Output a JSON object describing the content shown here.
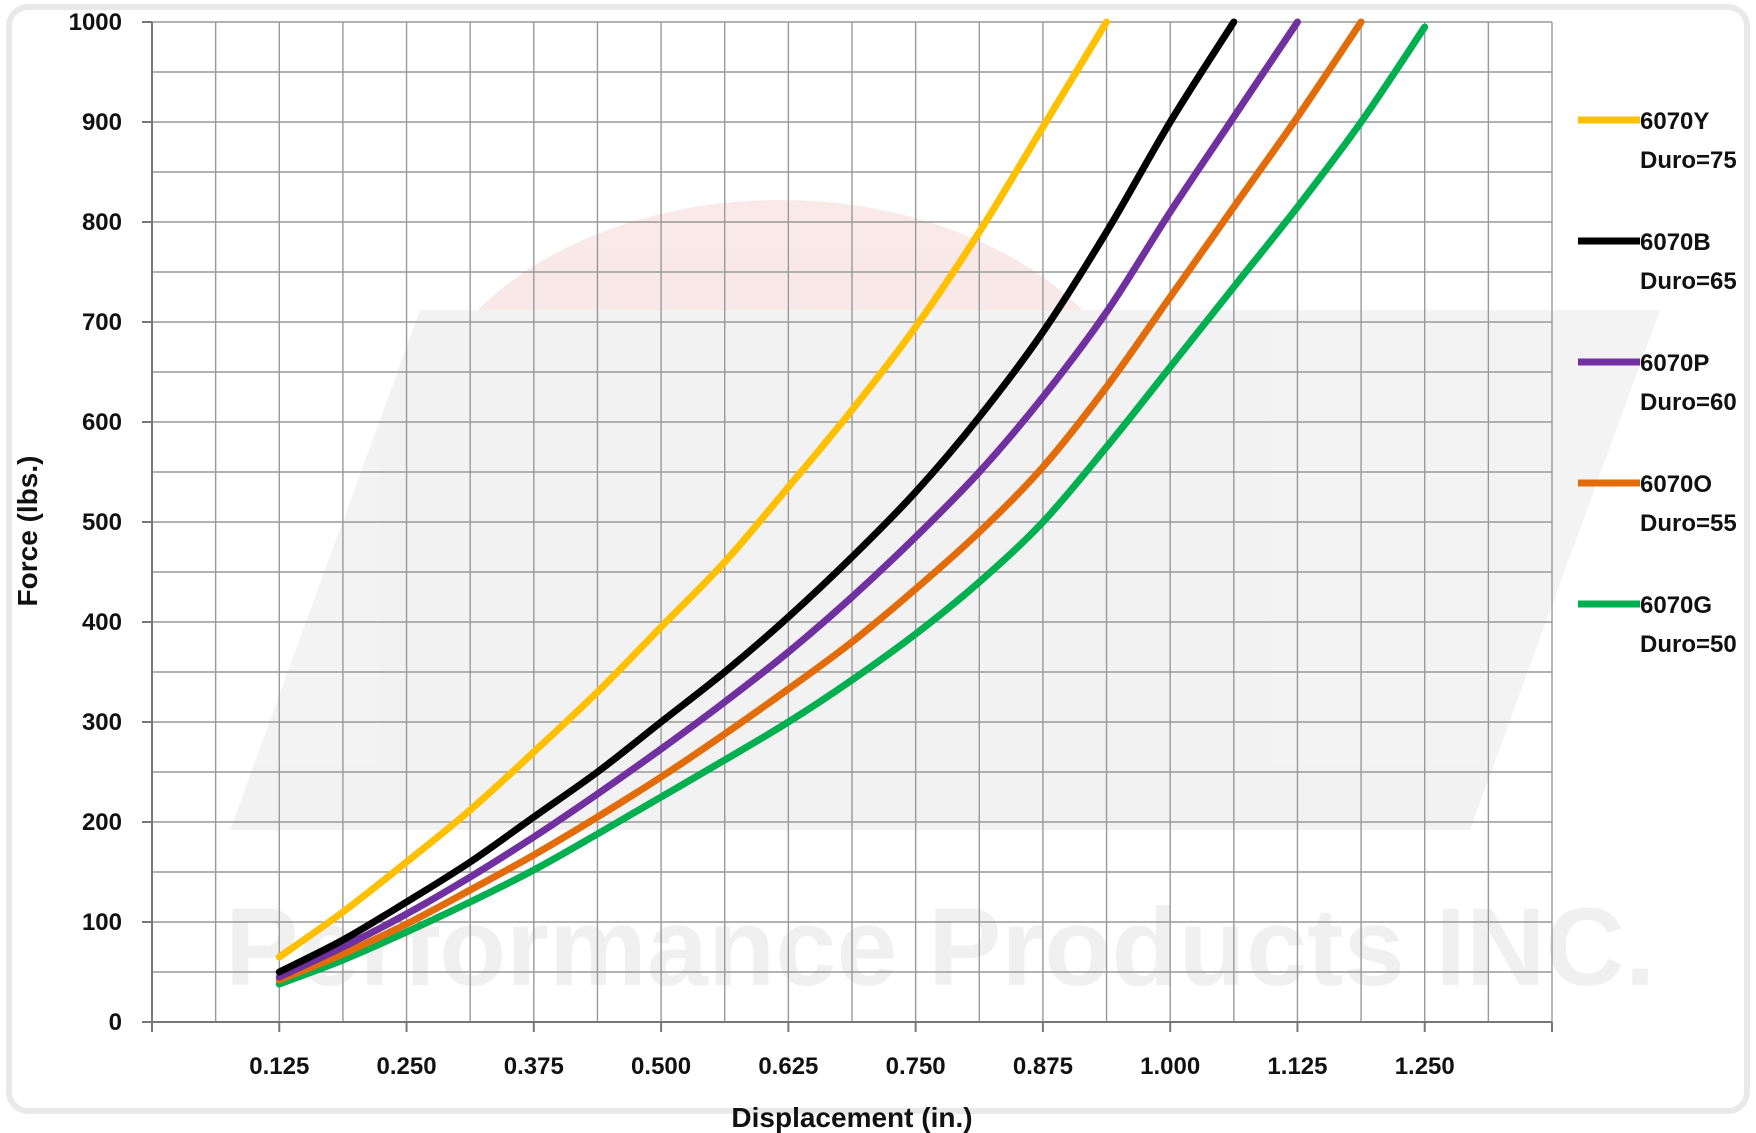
{
  "chart_data": {
    "type": "line",
    "title": "",
    "xlabel": "Displacement (in.)",
    "ylabel": "Force (lbs.)",
    "xlim": [
      0,
      1.375
    ],
    "ylim": [
      0,
      1000
    ],
    "x_ticks": [
      "0.125",
      "0.250",
      "0.375",
      "0.500",
      "0.625",
      "0.750",
      "0.875",
      "1.000",
      "1.125",
      "1.250"
    ],
    "y_ticks": [
      "0",
      "100",
      "200",
      "300",
      "400",
      "500",
      "600",
      "700",
      "800",
      "900",
      "1000"
    ],
    "grid": true,
    "legend_position": "right",
    "watermark": "Performance Products INC.",
    "series": [
      {
        "name": "6070Y",
        "legend_lines": [
          "6070Y",
          "Duro=75"
        ],
        "color": "#ffc000",
        "x": [
          0.125,
          0.1875,
          0.25,
          0.3125,
          0.375,
          0.4375,
          0.5,
          0.5625,
          0.625,
          0.6875,
          0.75,
          0.8125,
          0.875,
          0.9375
        ],
        "y": [
          65,
          110,
          160,
          212,
          270,
          330,
          395,
          460,
          535,
          612,
          695,
          790,
          895,
          1000
        ]
      },
      {
        "name": "6070B",
        "legend_lines": [
          "6070B",
          "Duro=65"
        ],
        "color": "#000000",
        "x": [
          0.125,
          0.1875,
          0.25,
          0.3125,
          0.375,
          0.4375,
          0.5,
          0.5625,
          0.625,
          0.6875,
          0.75,
          0.8125,
          0.875,
          0.9375,
          1.0,
          1.0625
        ],
        "y": [
          50,
          82,
          120,
          160,
          205,
          250,
          300,
          350,
          405,
          465,
          530,
          605,
          690,
          790,
          900,
          1000
        ]
      },
      {
        "name": "6070P",
        "legend_lines": [
          "6070P",
          "Duro=60"
        ],
        "color": "#7030a0",
        "x": [
          0.125,
          0.1875,
          0.25,
          0.3125,
          0.375,
          0.4375,
          0.5,
          0.5625,
          0.625,
          0.6875,
          0.75,
          0.8125,
          0.875,
          0.9375,
          1.0,
          1.0625,
          1.125
        ],
        "y": [
          45,
          75,
          108,
          145,
          185,
          228,
          273,
          320,
          370,
          425,
          485,
          550,
          625,
          710,
          810,
          905,
          1000
        ]
      },
      {
        "name": "6070O",
        "legend_lines": [
          "6070O",
          "Duro=55"
        ],
        "color": "#e36c0a",
        "x": [
          0.125,
          0.1875,
          0.25,
          0.3125,
          0.375,
          0.4375,
          0.5,
          0.5625,
          0.625,
          0.6875,
          0.75,
          0.8125,
          0.875,
          0.9375,
          1.0,
          1.0625,
          1.125,
          1.1875
        ],
        "y": [
          42,
          68,
          98,
          132,
          167,
          205,
          245,
          288,
          333,
          380,
          433,
          490,
          555,
          635,
          725,
          815,
          905,
          1000
        ]
      },
      {
        "name": "6070G",
        "legend_lines": [
          "6070G",
          "Duro=50"
        ],
        "color": "#00b050",
        "x": [
          0.125,
          0.1875,
          0.25,
          0.3125,
          0.375,
          0.4375,
          0.5,
          0.5625,
          0.625,
          0.6875,
          0.75,
          0.8125,
          0.875,
          0.9375,
          1.0,
          1.0625,
          1.125,
          1.1875,
          1.25
        ],
        "y": [
          38,
          62,
          90,
          120,
          152,
          188,
          225,
          262,
          300,
          342,
          388,
          440,
          500,
          575,
          655,
          735,
          815,
          900,
          995
        ]
      }
    ]
  }
}
